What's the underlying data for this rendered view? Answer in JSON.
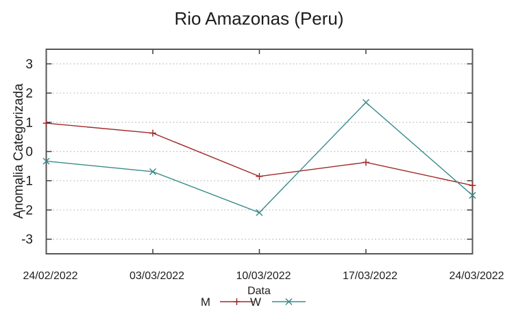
{
  "chart_data": {
    "type": "line",
    "title": "Rio Amazonas (Peru)",
    "xlabel": "Data",
    "ylabel": "Anomalia Categorizada",
    "categories": [
      "24/02/2022",
      "03/03/2022",
      "10/03/2022",
      "17/03/2022",
      "24/03/2022"
    ],
    "series": [
      {
        "name": "M",
        "marker": "plus",
        "color": "#a02828",
        "values": [
          0.97,
          0.63,
          -0.85,
          -0.37,
          -1.16
        ]
      },
      {
        "name": "W",
        "marker": "cross",
        "color": "#378b8b",
        "values": [
          -0.33,
          -0.69,
          -2.09,
          1.68,
          -1.5
        ]
      }
    ],
    "yticks": [
      -3,
      -2,
      -1,
      0,
      1,
      2,
      3
    ],
    "ylim": [
      -3.5,
      3.5
    ],
    "grid": "horizontal-dotted",
    "legend_position": "bottom-center",
    "colors": {
      "axis": "#555555",
      "tick": "#3a3a3a",
      "grid": "#b5b5b5",
      "text": "#1c1c1c"
    }
  }
}
